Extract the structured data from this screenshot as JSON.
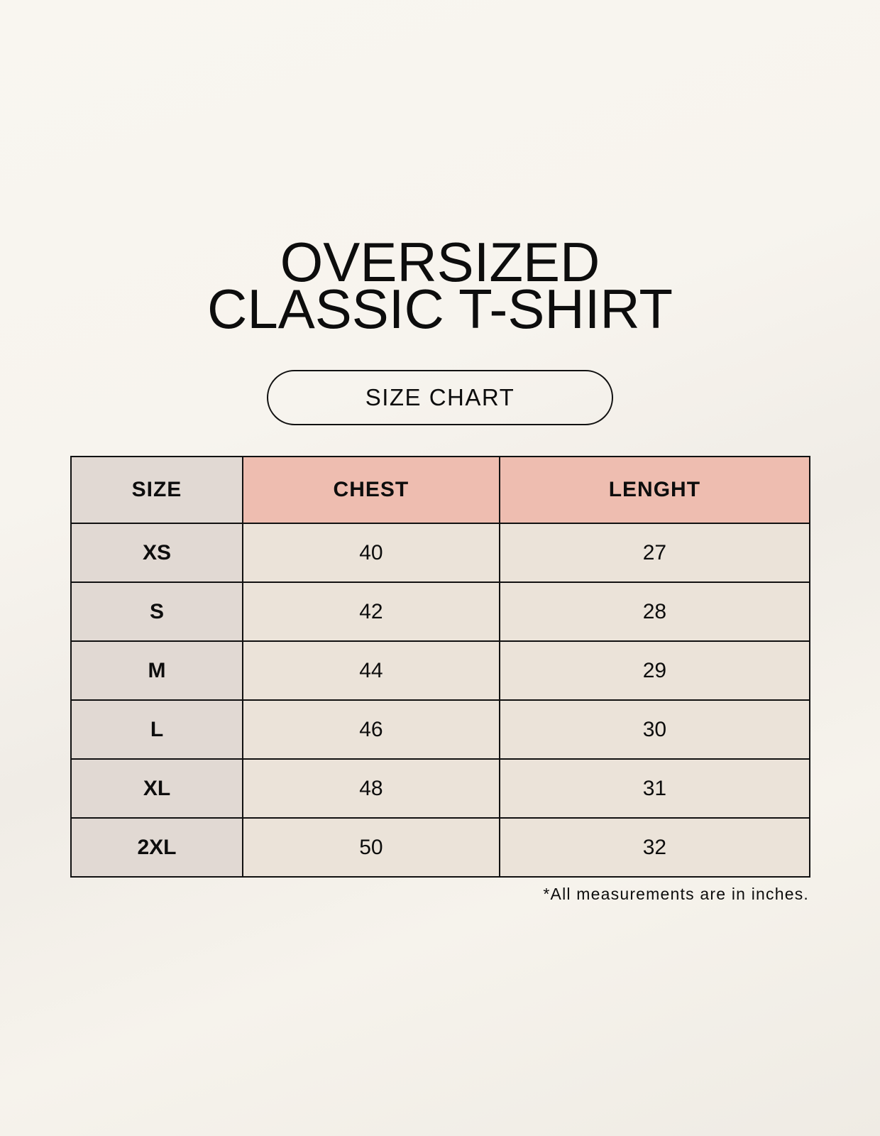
{
  "title_line1": "OVERSIZED",
  "title_line2": "CLASSIC T-SHIRT",
  "badge": "SIZE CHART",
  "table": {
    "headers": [
      "SIZE",
      "CHEST",
      "LENGHT"
    ],
    "rows": [
      [
        "XS",
        "40",
        "27"
      ],
      [
        "S",
        "42",
        "28"
      ],
      [
        "M",
        "44",
        "29"
      ],
      [
        "L",
        "46",
        "30"
      ],
      [
        "XL",
        "48",
        "31"
      ],
      [
        "2XL",
        "50",
        "32"
      ]
    ]
  },
  "footnote": "*All measurements are in inches.",
  "colors": {
    "header_size": "#e1d9d3",
    "header_measure": "#eebdb0",
    "cell": "#ebe3d9"
  }
}
